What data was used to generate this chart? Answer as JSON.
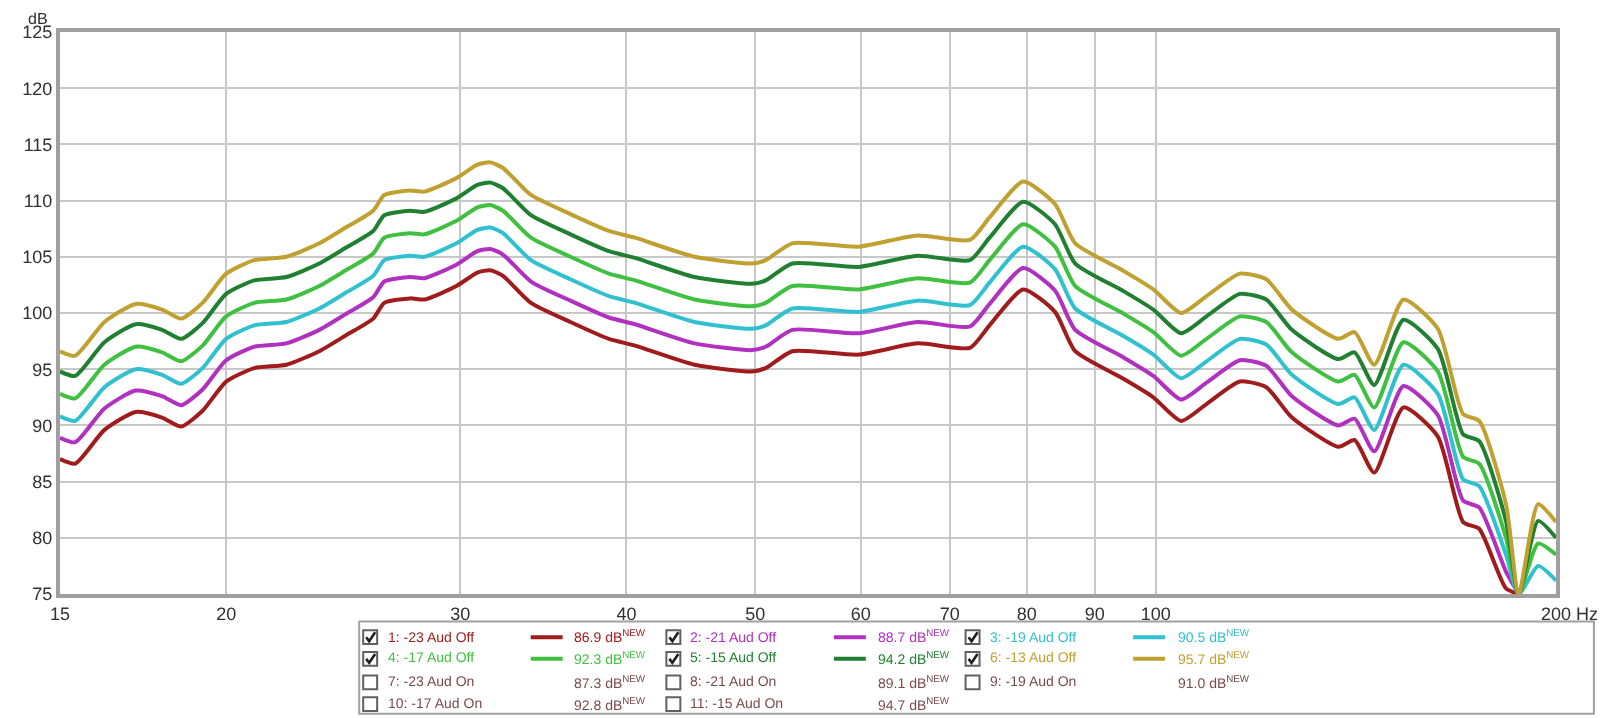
{
  "chart_data": {
    "type": "line",
    "xlabel": "Hz",
    "ylabel": "dB",
    "log": "x",
    "grid": true,
    "legend": "bottom",
    "marker": "none",
    "line_style": "solid",
    "xlim": [
      15,
      200
    ],
    "xticks": [
      15,
      20,
      30,
      40,
      50,
      60,
      70,
      80,
      90,
      100,
      200
    ],
    "ylim": [
      75,
      125
    ],
    "yticks": [
      75,
      80,
      85,
      90,
      95,
      100,
      105,
      110,
      115,
      120,
      125
    ],
    "x": [
      15,
      15.4,
      16.2,
      17.1,
      17.9,
      18.5,
      19.2,
      20.0,
      21.0,
      22.2,
      23.5,
      24.6,
      25.8,
      26.3,
      27.5,
      28.2,
      29.8,
      30.9,
      31.6,
      32.3,
      33.9,
      36.3,
      38.8,
      40.6,
      45.0,
      49.7,
      50.9,
      53.3,
      59.8,
      66.2,
      72.5,
      75.0,
      79.5,
      84.0,
      87.0,
      94.4,
      99.6,
      104.5,
      109.2,
      115.7,
      121.1,
      126.6,
      137.2,
      141.1,
      146.0,
      153.6,
      163.0,
      170.3,
      175.1,
      183.4,
      187.5,
      193.9,
      200
    ],
    "series": [
      {
        "name": "1: -23 Aud Off",
        "color": "#a01c1c",
        "values": [
          87.0,
          86.6,
          89.6,
          91.2,
          90.7,
          89.9,
          91.3,
          93.9,
          95.1,
          95.4,
          96.6,
          98.0,
          99.5,
          100.9,
          101.3,
          101.2,
          102.4,
          103.6,
          103.8,
          103.3,
          100.9,
          99.2,
          97.7,
          97.1,
          95.4,
          94.8,
          95.1,
          96.6,
          96.3,
          97.3,
          96.9,
          98.9,
          102.1,
          100.1,
          96.6,
          94.2,
          92.5,
          90.4,
          91.9,
          93.9,
          93.4,
          90.7,
          88.1,
          88.7,
          85.8,
          91.6,
          89.0,
          81.4,
          80.8,
          75.5,
          75,
          null,
          null
        ]
      },
      {
        "name": "2: -21 Aud Off",
        "color": "#b030c0",
        "values": [
          88.9,
          88.5,
          91.5,
          93.1,
          92.6,
          91.8,
          93.2,
          95.8,
          97.0,
          97.3,
          98.5,
          99.9,
          101.4,
          102.8,
          103.2,
          103.1,
          104.3,
          105.5,
          105.7,
          105.2,
          102.8,
          101.1,
          99.6,
          99.0,
          97.3,
          96.7,
          97.0,
          98.5,
          98.2,
          99.2,
          98.8,
          100.8,
          104.0,
          102.0,
          98.5,
          96.1,
          94.4,
          92.3,
          93.8,
          95.8,
          95.3,
          92.6,
          90.0,
          90.6,
          87.7,
          93.5,
          90.9,
          83.3,
          82.7,
          77,
          75,
          null,
          null
        ]
      },
      {
        "name": "3: -19 Aud Off",
        "color": "#30c0d0",
        "values": [
          90.8,
          90.4,
          93.4,
          95.0,
          94.5,
          93.7,
          95.1,
          97.7,
          98.9,
          99.2,
          100.4,
          101.8,
          103.3,
          104.7,
          105.1,
          105.0,
          106.2,
          107.4,
          107.6,
          107.1,
          104.7,
          103.0,
          101.5,
          100.9,
          99.2,
          98.6,
          98.9,
          100.4,
          100.1,
          101.1,
          100.7,
          102.7,
          105.9,
          103.9,
          100.4,
          98.0,
          96.3,
          94.2,
          95.7,
          97.7,
          97.2,
          94.5,
          91.9,
          92.5,
          89.6,
          95.4,
          92.8,
          85.2,
          84.6,
          78.5,
          75,
          77.5,
          76.2
        ]
      },
      {
        "name": "4: -17 Aud Off",
        "color": "#40c040",
        "values": [
          92.8,
          92.4,
          95.4,
          97.0,
          96.5,
          95.7,
          97.1,
          99.7,
          100.9,
          101.2,
          102.4,
          103.8,
          105.3,
          106.7,
          107.1,
          107.0,
          108.2,
          109.4,
          109.6,
          109.1,
          106.7,
          105.0,
          103.5,
          102.9,
          101.2,
          100.6,
          100.9,
          102.4,
          102.1,
          103.1,
          102.7,
          104.7,
          107.9,
          105.9,
          102.4,
          100.0,
          98.3,
          96.2,
          97.7,
          99.7,
          99.2,
          96.5,
          93.9,
          94.5,
          91.6,
          97.4,
          94.8,
          87.2,
          86.6,
          80,
          75,
          79.5,
          78.5
        ]
      },
      {
        "name": "5: -15 Aud Off",
        "color": "#208030",
        "values": [
          94.8,
          94.4,
          97.4,
          99.0,
          98.5,
          97.7,
          99.1,
          101.7,
          102.9,
          103.2,
          104.4,
          105.8,
          107.3,
          108.7,
          109.1,
          109.0,
          110.2,
          111.4,
          111.6,
          111.1,
          108.7,
          107.0,
          105.5,
          104.9,
          103.2,
          102.6,
          102.9,
          104.4,
          104.1,
          105.1,
          104.7,
          106.7,
          109.9,
          107.9,
          104.4,
          102.0,
          100.3,
          98.2,
          99.7,
          101.7,
          101.2,
          98.5,
          95.9,
          96.5,
          93.6,
          99.4,
          96.8,
          89.2,
          88.6,
          81.5,
          75,
          81.5,
          80
        ]
      },
      {
        "name": "6: -13 Aud Off",
        "color": "#c0a030",
        "values": [
          96.6,
          96.2,
          99.2,
          100.8,
          100.3,
          99.5,
          100.9,
          103.5,
          104.7,
          105.0,
          106.2,
          107.6,
          109.1,
          110.5,
          110.9,
          110.8,
          112.0,
          113.2,
          113.4,
          112.9,
          110.5,
          108.8,
          107.3,
          106.7,
          105.0,
          104.4,
          104.7,
          106.2,
          105.9,
          106.9,
          106.5,
          108.5,
          111.7,
          109.7,
          106.2,
          103.8,
          102.1,
          100.0,
          101.5,
          103.5,
          103.0,
          100.3,
          97.7,
          98.3,
          95.4,
          101.2,
          98.6,
          91.0,
          90.4,
          83,
          75,
          83,
          81.4
        ]
      }
    ],
    "annotations": [
      "86.9 dB$^{NEW}$",
      "88.7 dB$^{NEW}$",
      "90.5 dB$^{NEW}$",
      "92.3 dB$^{NEW}$",
      "94.2 dB$^{NEW}$",
      "95.7 dB$^{NEW}$",
      "7: -23 Aud On",
      "87.3 dB$^{NEW}$",
      "8: -21 Aud On",
      "89.1 dB$^{NEW}$",
      "9: -19 Aud On",
      "91.0 dB$^{NEW}$",
      "10: -17 Aud On",
      "92.8 dB$^{NEW}$",
      "11: -15 Aud On",
      "94.7 dB$^{NEW}$"
    ]
  }
}
